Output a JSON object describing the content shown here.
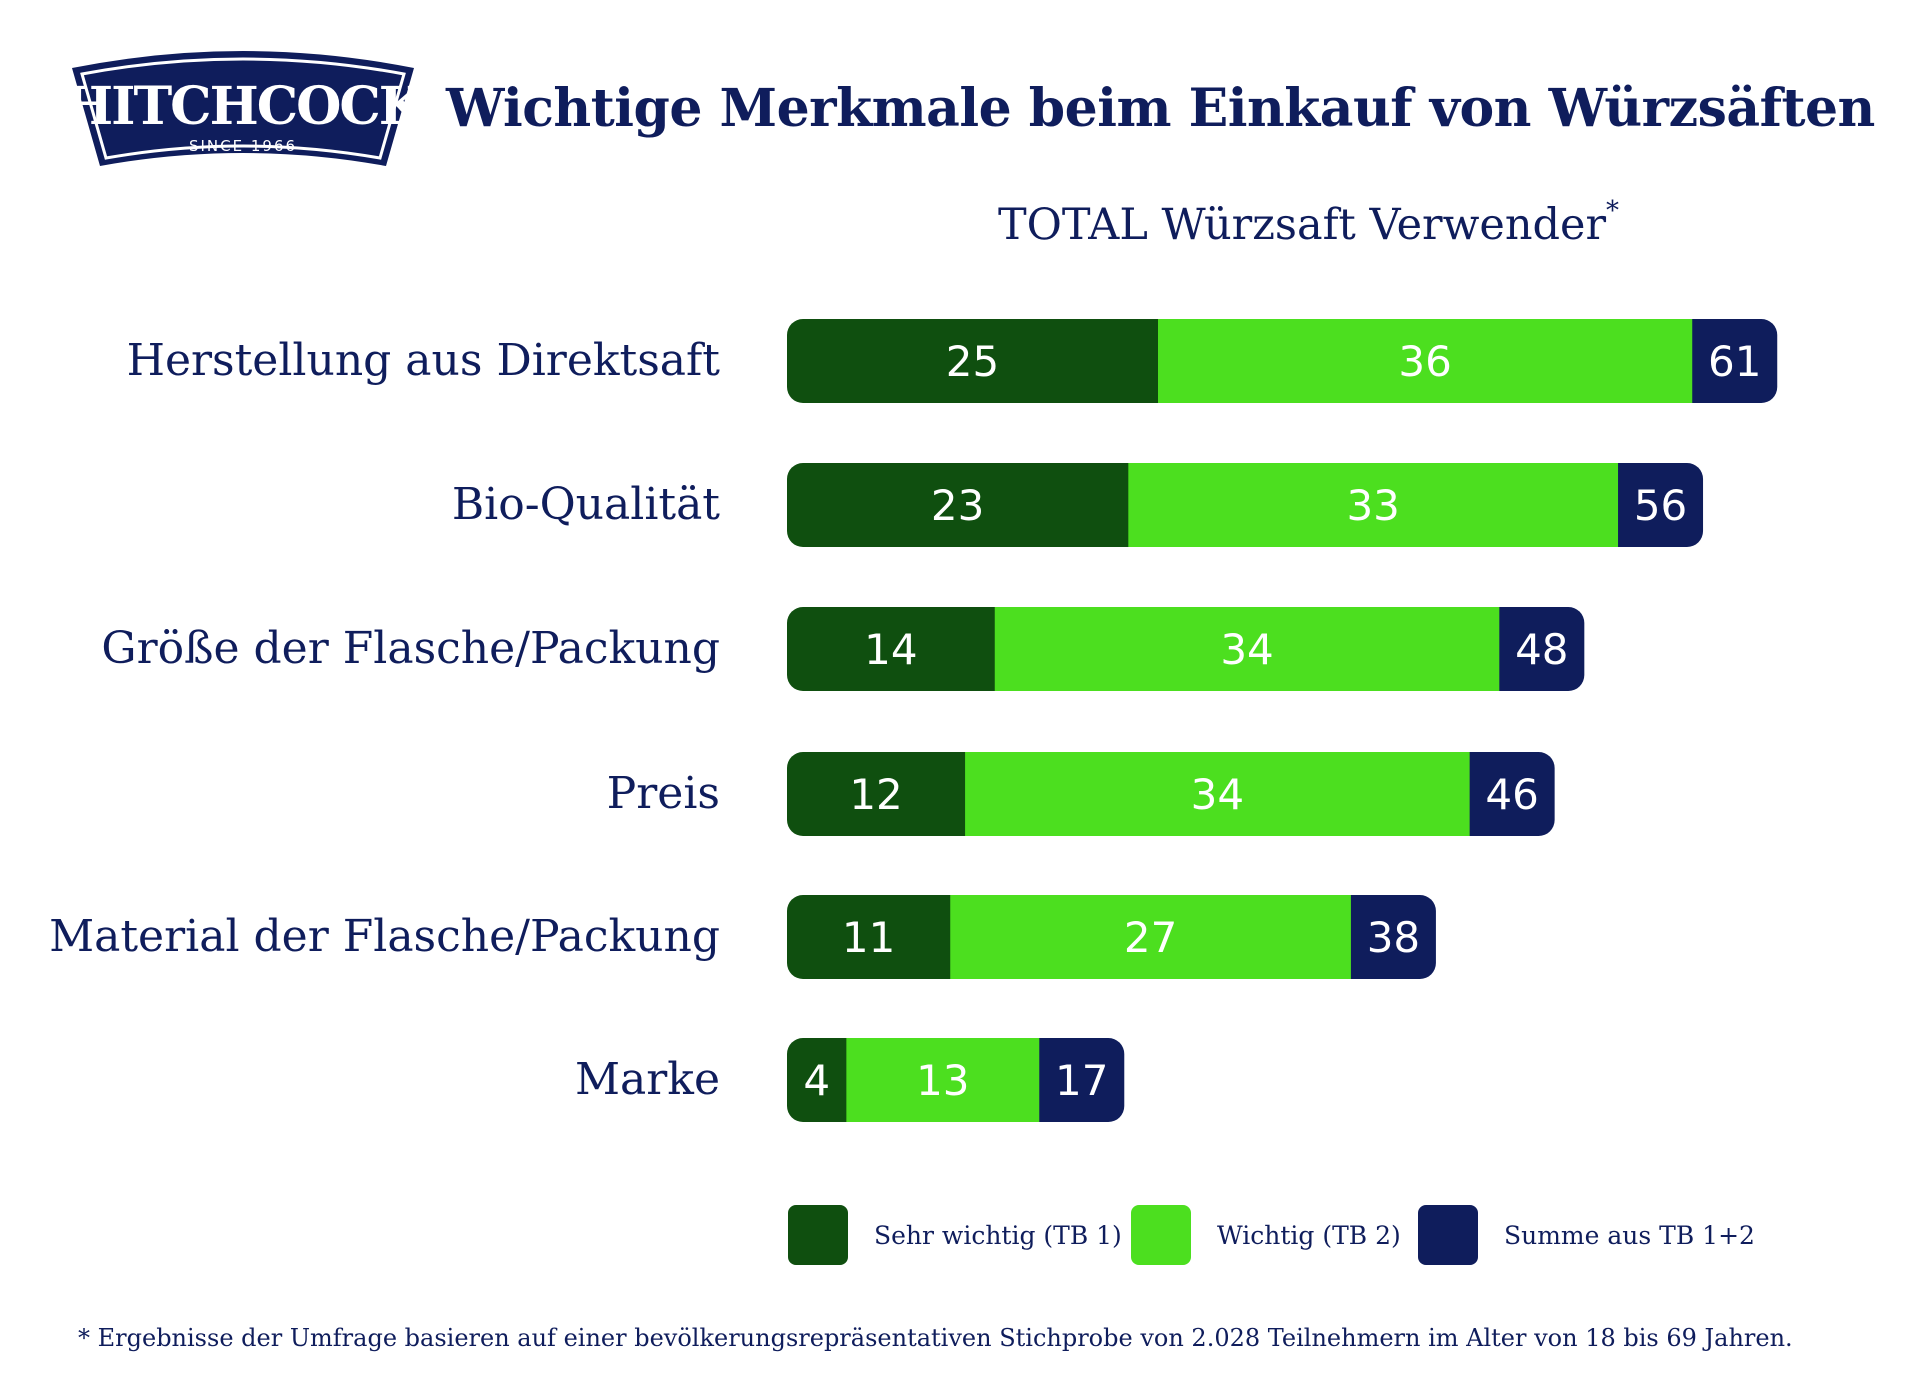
{
  "header": {
    "logo_text": "HITCHCOCK",
    "logo_since": "SINCE 1966",
    "title": "Wichtige Merkmale beim Einkauf von Würzsäften",
    "subtitle": "TOTAL Würzsaft Verwender",
    "subtitle_mark": "*"
  },
  "colors": {
    "dark_green": "#0f4f0f",
    "light_green": "#4cdf1f",
    "navy": "#0f1d5c"
  },
  "chart_data": {
    "type": "bar",
    "orientation": "horizontal",
    "stacked": true,
    "title": "Wichtige Merkmale beim Einkauf von Würzsäften",
    "subtitle": "TOTAL Würzsaft Verwender*",
    "categories": [
      "Herstellung aus Direktsaft",
      "Bio-Qualität",
      "Größe der Flasche/Packung",
      "Preis",
      "Material der Flasche/Packung",
      "Marke"
    ],
    "series": [
      {
        "name": "Sehr wichtig (TB 1)",
        "values": [
          25,
          23,
          14,
          12,
          11,
          4
        ],
        "color": "#0f4f0f"
      },
      {
        "name": "Wichtig (TB 2)",
        "values": [
          36,
          33,
          34,
          34,
          27,
          13
        ],
        "color": "#4cdf1f"
      },
      {
        "name": "Summe aus TB 1+2",
        "values": [
          61,
          56,
          48,
          46,
          38,
          17
        ],
        "color": "#0f1d5c"
      }
    ],
    "legend_position": "bottom",
    "grid": false
  },
  "footnote": "* Ergebnisse der Umfrage basieren auf einer bevölkerungsrepräsentativen Stichprobe von 2.028 Teilnehmern im Alter von 18 bis 69 Jahren."
}
